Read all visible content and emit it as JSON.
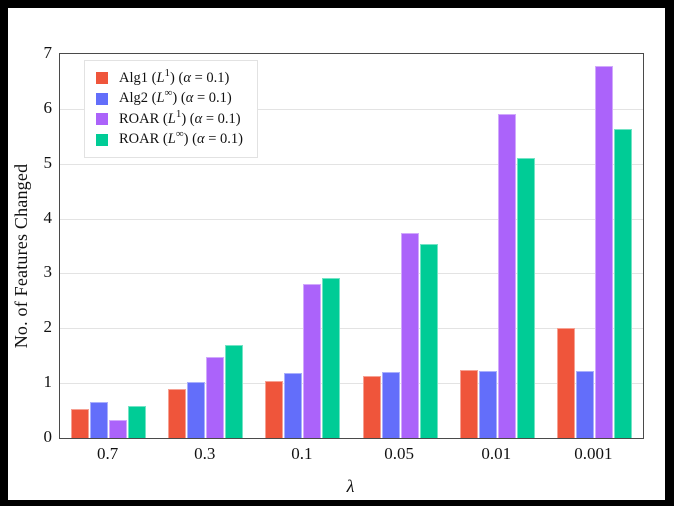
{
  "figure": {
    "outer_border_color": "#000000",
    "page_background": "#ffffff",
    "plot_frame_color": "#4a4a4a",
    "gridline_color": "#e3e3e3"
  },
  "chart_data": {
    "type": "bar",
    "title": "",
    "xlabel": "λ",
    "ylabel": "No. of Features Changed",
    "categories": [
      "0.7",
      "0.3",
      "0.1",
      "0.05",
      "0.01",
      "0.001"
    ],
    "series": [
      {
        "name": "Alg1 (L¹) (α = 0.1)",
        "color": "#EF553B",
        "values": [
          0.52,
          0.89,
          1.04,
          1.13,
          1.24,
          2.0
        ]
      },
      {
        "name": "Alg2 (L∞) (α = 0.1)",
        "color": "#636EFA",
        "values": [
          0.66,
          1.03,
          1.18,
          1.2,
          1.22,
          1.22
        ]
      },
      {
        "name": "ROAR (L¹) (α = 0.1)",
        "color": "#AB63FA",
        "values": [
          0.33,
          1.48,
          2.8,
          3.73,
          5.91,
          6.79
        ]
      },
      {
        "name": "ROAR (L∞) (α = 0.1)",
        "color": "#00CC96",
        "values": [
          0.58,
          1.69,
          2.92,
          3.54,
          5.1,
          5.64
        ]
      }
    ],
    "ylim": [
      0,
      7
    ],
    "yticks": [
      0,
      1,
      2,
      3,
      4,
      5,
      6,
      7
    ],
    "grid": true,
    "legend_position": "upper left"
  },
  "legend": {
    "items": [
      {
        "color": "#EF553B",
        "parts": [
          [
            "Alg1 (",
            "n"
          ],
          [
            "L",
            "i"
          ],
          [
            "1",
            "s"
          ],
          [
            ") (",
            "n"
          ],
          [
            "α",
            "i"
          ],
          [
            " = 0.1)",
            "n"
          ]
        ]
      },
      {
        "color": "#636EFA",
        "parts": [
          [
            "Alg2 (",
            "n"
          ],
          [
            "L",
            "i"
          ],
          [
            "∞",
            "s"
          ],
          [
            ") (",
            "n"
          ],
          [
            "α",
            "i"
          ],
          [
            " = 0.1)",
            "n"
          ]
        ]
      },
      {
        "color": "#AB63FA",
        "parts": [
          [
            "ROAR (",
            "n"
          ],
          [
            "L",
            "i"
          ],
          [
            "1",
            "s"
          ],
          [
            ") (",
            "n"
          ],
          [
            "α",
            "i"
          ],
          [
            " = 0.1)",
            "n"
          ]
        ]
      },
      {
        "color": "#00CC96",
        "parts": [
          [
            "ROAR (",
            "n"
          ],
          [
            "L",
            "i"
          ],
          [
            "∞",
            "s"
          ],
          [
            ") (",
            "n"
          ],
          [
            "α",
            "i"
          ],
          [
            " = 0.1)",
            "n"
          ]
        ]
      }
    ]
  }
}
